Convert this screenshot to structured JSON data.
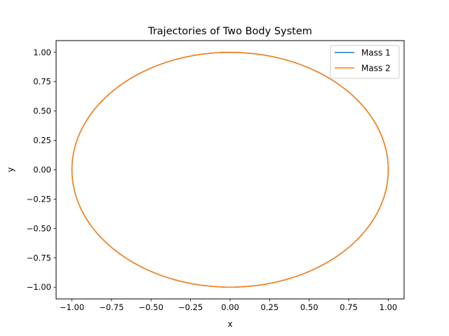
{
  "chart_data": {
    "type": "line",
    "title": "Trajectories of Two Body System",
    "xlabel": "x",
    "ylabel": "y",
    "xlim": [
      -1.1,
      1.1
    ],
    "ylim": [
      -1.1,
      1.1
    ],
    "xticks": [
      -1.0,
      -0.75,
      -0.5,
      -0.25,
      0.0,
      0.25,
      0.5,
      0.75,
      1.0
    ],
    "xtick_labels": [
      "−1.00",
      "−0.75",
      "−0.50",
      "−0.25",
      "0.00",
      "0.25",
      "0.50",
      "0.75",
      "1.00"
    ],
    "yticks": [
      -1.0,
      -0.75,
      -0.5,
      -0.25,
      0.0,
      0.25,
      0.5,
      0.75,
      1.0
    ],
    "ytick_labels": [
      "−1.00",
      "−0.75",
      "−0.50",
      "−0.25",
      "0.00",
      "0.25",
      "0.50",
      "0.75",
      "1.00"
    ],
    "grid": false,
    "legend_position": "top-right",
    "series": [
      {
        "name": "Mass 1",
        "color": "#1f77b4",
        "x": [
          1.0,
          0.966,
          0.866,
          0.707,
          0.5,
          0.259,
          0.0,
          -0.259,
          -0.5,
          -0.707,
          -0.866,
          -0.966,
          -1.0,
          -0.966,
          -0.866,
          -0.707,
          -0.5,
          -0.259,
          0.0,
          0.259,
          0.5,
          0.707,
          0.866,
          0.966,
          1.0
        ],
        "y": [
          0.0,
          0.259,
          0.5,
          0.707,
          0.866,
          0.966,
          1.0,
          0.966,
          0.866,
          0.707,
          0.5,
          0.259,
          0.0,
          -0.259,
          -0.5,
          -0.707,
          -0.866,
          -0.966,
          -1.0,
          -0.966,
          -0.866,
          -0.707,
          -0.5,
          -0.259,
          0.0
        ]
      },
      {
        "name": "Mass 2",
        "color": "#ff7f0e",
        "x": [
          1.0,
          0.966,
          0.866,
          0.707,
          0.5,
          0.259,
          0.0,
          -0.259,
          -0.5,
          -0.707,
          -0.866,
          -0.966,
          -1.0,
          -0.966,
          -0.866,
          -0.707,
          -0.5,
          -0.259,
          0.0,
          0.259,
          0.5,
          0.707,
          0.866,
          0.966,
          1.0
        ],
        "y": [
          0.0,
          0.259,
          0.5,
          0.707,
          0.866,
          0.966,
          1.0,
          0.966,
          0.866,
          0.707,
          0.5,
          0.259,
          0.0,
          -0.259,
          -0.5,
          -0.707,
          -0.866,
          -0.966,
          -1.0,
          -0.966,
          -0.866,
          -0.707,
          -0.5,
          -0.259,
          0.0
        ]
      }
    ]
  }
}
